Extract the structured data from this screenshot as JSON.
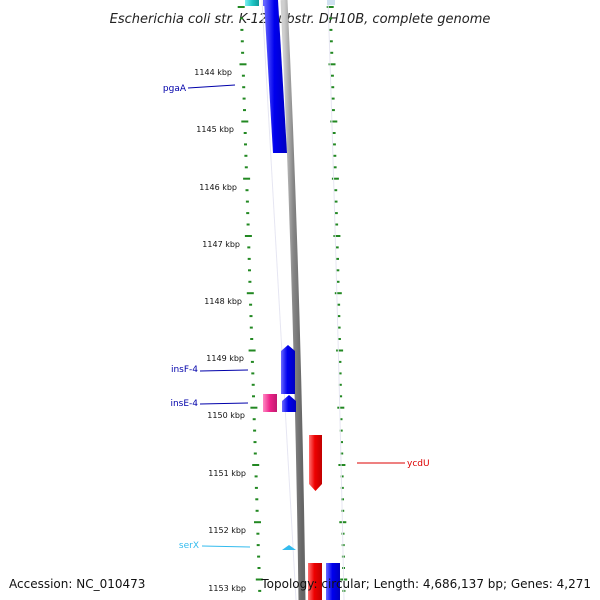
{
  "title": "Escherichia coli str. K-12 substr. DH10B, complete genome",
  "footer": {
    "accession": "Accession: NC_010473",
    "topology": "Topology: circular; Length: 4,686,137 bp; Genes: 4,271"
  },
  "scale": {
    "unit": "kbp",
    "ticks": [
      {
        "value": 1144,
        "label": "1144 kbp"
      },
      {
        "value": 1145,
        "label": "1145 kbp"
      },
      {
        "value": 1146,
        "label": "1146 kbp"
      },
      {
        "value": 1147,
        "label": "1147 kbp"
      },
      {
        "value": 1148,
        "label": "1148 kbp"
      },
      {
        "value": 1149,
        "label": "1149 kbp"
      },
      {
        "value": 1150,
        "label": "1150 kbp"
      },
      {
        "value": 1151,
        "label": "1151 kbp"
      },
      {
        "value": 1152,
        "label": "1152 kbp"
      },
      {
        "value": 1153,
        "label": "1153 kbp"
      }
    ]
  },
  "genes": [
    {
      "name": "pgaA",
      "strand": "forward",
      "color": "#0000ee"
    },
    {
      "name": "insF-4",
      "strand": "forward",
      "color": "#0000ee"
    },
    {
      "name": "insE-4",
      "strand": "forward",
      "color": "#0000ee"
    },
    {
      "name": "ycdU",
      "strand": "reverse",
      "color": "#ee0000"
    },
    {
      "name": "serX",
      "strand": "forward",
      "color": "#33bbee"
    }
  ],
  "colors": {
    "forward_cds": "#0000ee",
    "reverse_cds": "#ee0000",
    "trna": "#33bbee",
    "pseudo": "#ee2288",
    "backbone": "#888888",
    "ticks": "#228822"
  }
}
